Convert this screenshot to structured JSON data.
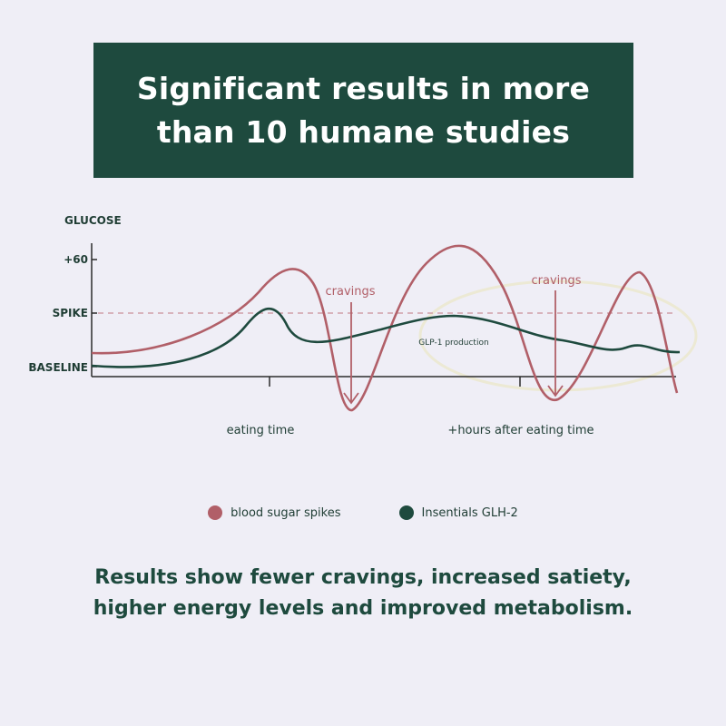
{
  "header": {
    "title_line1": "Significant results in more",
    "title_line2": "than 10 humane studies"
  },
  "chart_data": {
    "type": "line",
    "ylabel": "GLUCOSE",
    "y_ticks": [
      "BASELINE",
      "SPIKE",
      "+60"
    ],
    "x_tick_labels": [
      "eating time",
      "+hours after eating time"
    ],
    "reference_line": "SPIKE",
    "annotations": [
      "cravings",
      "cravings",
      "GLP-1 production"
    ],
    "series": [
      {
        "name": "blood sugar spikes",
        "color": "#b15f68"
      },
      {
        "name": "Insentials GLH-2",
        "color": "#1e4a3e"
      }
    ]
  },
  "legend": {
    "items": [
      {
        "label": "blood sugar spikes",
        "color": "#b15f68"
      },
      {
        "label": "Insentials GLH-2",
        "color": "#1e4a3e"
      }
    ]
  },
  "summary": {
    "text": "Results show fewer cravings, increased satiety, higher energy levels and improved metabolism."
  },
  "colors": {
    "background": "#efeef6",
    "brand_green": "#1e4a3e",
    "spike_red": "#b15f68",
    "highlight_ellipse": "#ece9d4"
  }
}
